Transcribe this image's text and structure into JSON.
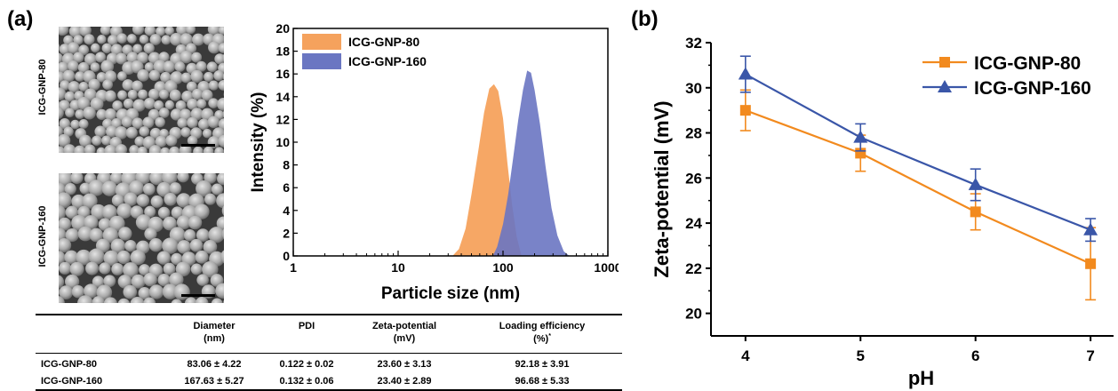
{
  "panel_a_label": "(a)",
  "panel_b_label": "(b)",
  "sem_images": [
    {
      "label": "ICG-GNP-80"
    },
    {
      "label": "ICG-GNP-160"
    }
  ],
  "table": {
    "headers": [
      {
        "line1": "",
        "line2": ""
      },
      {
        "line1": "Diameter",
        "line2": "(nm)"
      },
      {
        "line1": "PDI",
        "line2": ""
      },
      {
        "line1": "Zeta-potential",
        "line2": "(mV)"
      },
      {
        "line1": "Loading efficiency",
        "line2": "(%)",
        "sup": "*"
      }
    ],
    "rows": [
      [
        "ICG-GNP-80",
        "83.06 ± 4.22",
        "0.122 ± 0.02",
        "23.60 ± 3.13",
        "92.18 ± 3.91"
      ],
      [
        "ICG-GNP-160",
        "167.63 ± 5.27",
        "0.132 ± 0.06",
        "23.40 ± 2.89",
        "96.68 ± 5.33"
      ]
    ]
  },
  "chart_data": [
    {
      "type": "area",
      "xlabel": "Particle size (nm)",
      "ylabel": "Intensity (%)",
      "x_scale": "log",
      "xlim": [
        1,
        1000
      ],
      "ylim": [
        0,
        20
      ],
      "x_ticks": [
        1,
        10,
        100,
        1000
      ],
      "x_tick_labels": [
        "1",
        "10",
        "100",
        "1000"
      ],
      "y_ticks": [
        0,
        2,
        4,
        6,
        8,
        10,
        12,
        14,
        16,
        18,
        20
      ],
      "legend_position": "top-left",
      "series": [
        {
          "name": "ICG-GNP-80",
          "color": "#f5a25d",
          "x": [
            33,
            38,
            44,
            50,
            58,
            66,
            74,
            82,
            90,
            100,
            110,
            122,
            135,
            150
          ],
          "y": [
            0,
            0.6,
            2.4,
            5.4,
            9.2,
            12.6,
            14.7,
            15.1,
            14.5,
            12.1,
            8.2,
            4.5,
            1.7,
            0
          ]
        },
        {
          "name": "ICG-GNP-160",
          "color": "#6a76c2",
          "x": [
            80,
            88,
            100,
            112,
            125,
            140,
            155,
            170,
            185,
            200,
            225,
            255,
            290,
            330,
            380,
            430
          ],
          "y": [
            0,
            0.8,
            2.8,
            5.4,
            8.6,
            12.0,
            14.6,
            16.3,
            16.1,
            14.6,
            11.6,
            7.8,
            4.2,
            1.8,
            0.4,
            0
          ]
        }
      ]
    },
    {
      "type": "line",
      "xlabel": "pH",
      "ylabel": "Zeta-potential (mV)",
      "x": [
        4,
        5,
        6,
        7
      ],
      "xlim": [
        3.7,
        7.2
      ],
      "ylim": [
        19,
        32
      ],
      "y_ticks": [
        20,
        22,
        24,
        26,
        28,
        30,
        32
      ],
      "legend_position": "top-right",
      "series": [
        {
          "name": "ICG-GNP-80",
          "color": "#f28a1e",
          "marker": "square",
          "values": [
            29.0,
            27.1,
            24.5,
            22.2
          ],
          "errors": [
            0.9,
            0.8,
            0.8,
            1.6
          ]
        },
        {
          "name": "ICG-GNP-160",
          "color": "#3a56a8",
          "marker": "triangle",
          "values": [
            30.6,
            27.8,
            25.7,
            23.7
          ],
          "errors": [
            0.8,
            0.6,
            0.7,
            0.5
          ]
        }
      ]
    }
  ]
}
